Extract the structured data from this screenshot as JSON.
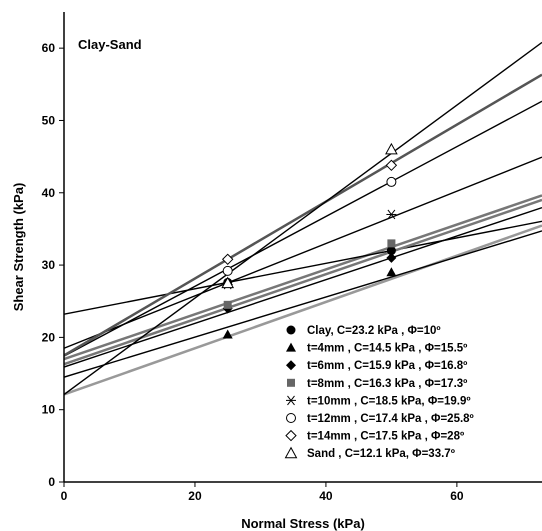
{
  "chart_data": {
    "type": "scatter",
    "title": "",
    "annotation": "Clay-Sand",
    "xlabel": "Normal Stress (kPa)",
    "ylabel": "Shear Strength (kPa)",
    "xlim": [
      0,
      73
    ],
    "ylim": [
      0,
      65
    ],
    "xticks": [
      0,
      20,
      40,
      60
    ],
    "yticks": [
      0,
      10,
      20,
      30,
      40,
      50,
      60
    ],
    "grid": false,
    "legend_position": "bottom-right",
    "series": [
      {
        "name": "Clay,     C=23.2 kPa ,  Φ=10º",
        "marker": "circle-filled",
        "line_color": "#000000",
        "intercept": 23.2,
        "slope": 0.176,
        "points": [
          [
            25,
            27.6
          ],
          [
            50,
            32.0
          ]
        ]
      },
      {
        "name": "t=4mm , C=14.5 kPa ,  Φ=15.5º",
        "marker": "triangle-filled",
        "line_color": "#000000",
        "intercept": 14.5,
        "slope": 0.277,
        "points": [
          [
            25,
            20.4
          ],
          [
            50,
            29.0
          ]
        ]
      },
      {
        "name": "t=6mm , C=15.9 kPa ,  Φ=16.8º",
        "marker": "diamond-filled",
        "line_color": "#000000",
        "intercept": 15.9,
        "slope": 0.302,
        "points": [
          [
            25,
            24.0
          ],
          [
            50,
            31.0
          ]
        ]
      },
      {
        "name": "t=8mm , C=16.3 kPa ,  Φ=17.3º",
        "marker": "square-filled",
        "line_color": "#777777",
        "intercept": 16.3,
        "slope": 0.311,
        "points": [
          [
            25,
            24.5
          ],
          [
            50,
            33.0
          ]
        ]
      },
      {
        "name": "t=10mm , C=18.5 kPa, Φ=19.9º",
        "marker": "asterisk",
        "line_color": "#000000",
        "intercept": 18.5,
        "slope": 0.362,
        "points": [
          [
            25,
            27.3
          ],
          [
            50,
            37.0
          ]
        ]
      },
      {
        "name": "t=12mm , C=17.4 kPa , Φ=25.8º",
        "marker": "circle-open",
        "line_color": "#000000",
        "intercept": 17.4,
        "slope": 0.483,
        "points": [
          [
            25,
            29.2
          ],
          [
            50,
            41.5
          ]
        ]
      },
      {
        "name": "t=14mm , C=17.5 kPa , Φ=28º",
        "marker": "diamond-open",
        "line_color": "#555555",
        "intercept": 17.5,
        "slope": 0.532,
        "points": [
          [
            25,
            30.8
          ],
          [
            50,
            43.8
          ]
        ]
      },
      {
        "name": "Sand ,      C=12.1 kPa,  Φ=33.7º",
        "marker": "triangle-open",
        "line_color": "#000000",
        "intercept": 12.1,
        "slope": 0.667,
        "points": [
          [
            25,
            27.5
          ],
          [
            50,
            46.0
          ]
        ]
      }
    ],
    "extra_lines": [
      {
        "line_color": "#999999",
        "intercept": 12.1,
        "slope": 0.32
      },
      {
        "line_color": "#777777",
        "intercept": 17.0,
        "slope": 0.31
      }
    ]
  }
}
